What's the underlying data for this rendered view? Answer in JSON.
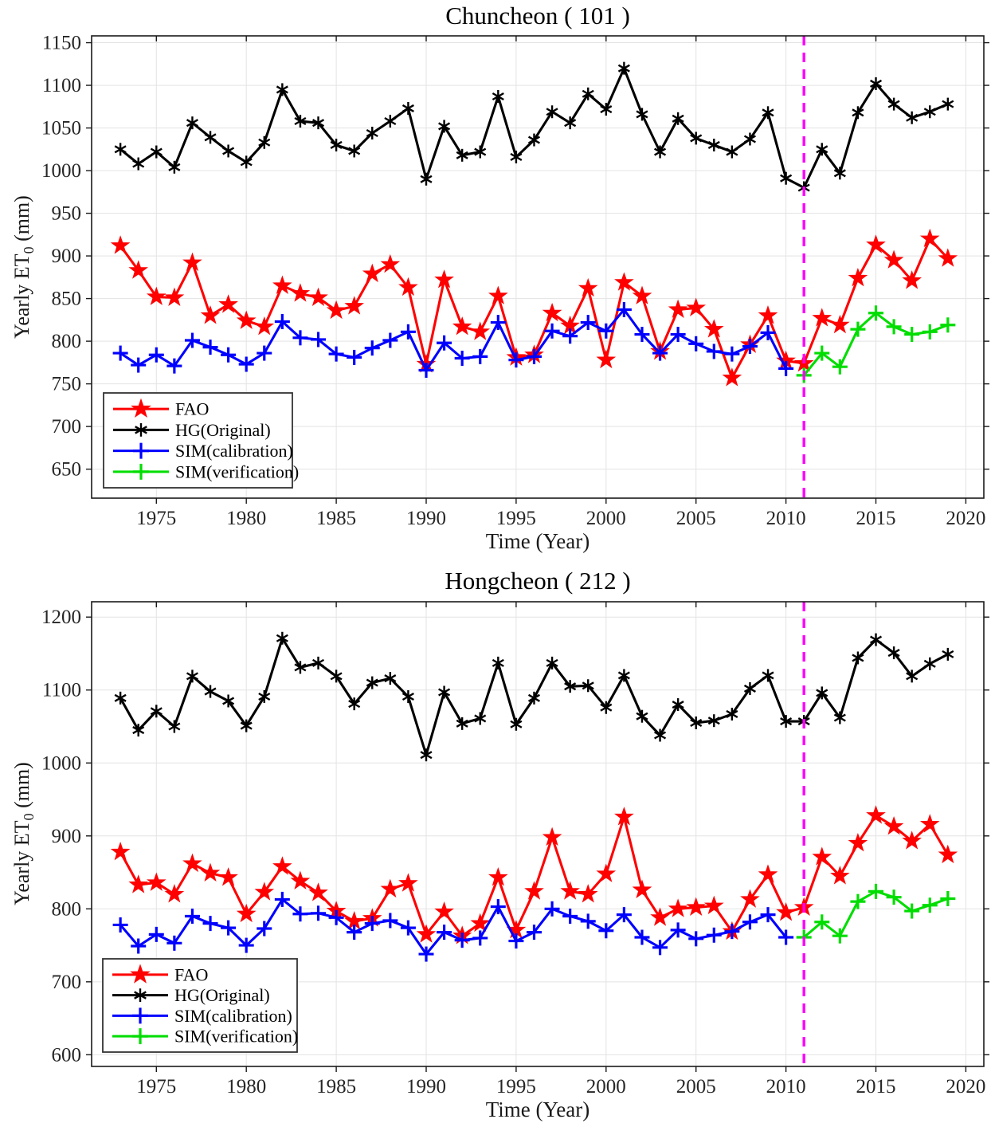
{
  "figure_caption": "",
  "split_year_note": "2011",
  "chart_data": [
    {
      "type": "line",
      "title": "Chuncheon ( 101 )",
      "xlabel": "Time (Year)",
      "ylabel": {
        "text": "Yearly ET",
        "sub": "0",
        "suffix": " (mm)"
      },
      "xlim": [
        1971.4,
        2021.0
      ],
      "ylim": [
        616,
        1158
      ],
      "xticks": [
        1975,
        1980,
        1985,
        1990,
        1995,
        2000,
        2005,
        2010,
        2015,
        2020
      ],
      "yticks": [
        650,
        700,
        750,
        800,
        850,
        900,
        950,
        1000,
        1050,
        1100,
        1150
      ],
      "grid": true,
      "legend_position": "lower-left",
      "split_line": {
        "x": 2011,
        "color": "#ff00ff",
        "style": "dashed"
      },
      "series": [
        {
          "name": "FAO",
          "color": "#ff0000",
          "marker": "star",
          "start_year": 1973,
          "values": [
            912,
            883,
            852,
            851,
            892,
            830,
            843,
            824,
            817,
            865,
            856,
            851,
            836,
            841,
            879,
            890,
            863,
            773,
            872,
            817,
            811,
            853,
            781,
            784,
            833,
            818,
            862,
            778,
            869,
            853,
            788,
            837,
            839,
            814,
            757,
            796,
            830,
            777,
            774,
            827,
            819,
            874,
            913,
            895,
            871,
            920,
            897
          ]
        },
        {
          "name": "HG(Original)",
          "color": "#000000",
          "marker": "asterisk",
          "start_year": 1973,
          "values": [
            1025,
            1008,
            1022,
            1004,
            1056,
            1039,
            1023,
            1010,
            1033,
            1095,
            1058,
            1056,
            1030,
            1023,
            1044,
            1058,
            1073,
            990,
            1052,
            1018,
            1022,
            1087,
            1016,
            1036,
            1069,
            1056,
            1090,
            1072,
            1120,
            1066,
            1022,
            1061,
            1038,
            1030,
            1022,
            1037,
            1068,
            991,
            980,
            1025,
            997,
            1068,
            1102,
            1078,
            1062,
            1069,
            1078
          ]
        },
        {
          "name": "SIM(calibration)",
          "color": "#0000ff",
          "marker": "plus",
          "start_year": 1973,
          "values": [
            786,
            772,
            784,
            771,
            801,
            793,
            784,
            773,
            786,
            823,
            804,
            802,
            785,
            781,
            792,
            801,
            811,
            766,
            798,
            780,
            782,
            822,
            778,
            782,
            812,
            806,
            822,
            812,
            837,
            808,
            786,
            808,
            797,
            788,
            785,
            794,
            810,
            768
          ]
        },
        {
          "name": "SIM(verification)",
          "color": "#00dd00",
          "marker": "plus",
          "start_year": 2011,
          "values": [
            760,
            786,
            770,
            814,
            833,
            817,
            808,
            811,
            819
          ]
        }
      ]
    },
    {
      "type": "line",
      "title": "Hongcheon ( 212 )",
      "xlabel": "Time (Year)",
      "ylabel": {
        "text": "Yearly ET",
        "sub": "0",
        "suffix": " (mm)"
      },
      "xlim": [
        1971.4,
        2021.0
      ],
      "ylim": [
        584,
        1221
      ],
      "xticks": [
        1975,
        1980,
        1985,
        1990,
        1995,
        2000,
        2005,
        2010,
        2015,
        2020
      ],
      "yticks": [
        600,
        700,
        800,
        900,
        1000,
        1100,
        1200
      ],
      "grid": true,
      "legend_position": "lower-left",
      "split_line": {
        "x": 2011,
        "color": "#ff00ff",
        "style": "dashed"
      },
      "series": [
        {
          "name": "FAO",
          "color": "#ff0000",
          "marker": "star",
          "start_year": 1973,
          "values": [
            878,
            833,
            836,
            820,
            862,
            849,
            843,
            793,
            823,
            858,
            838,
            822,
            797,
            783,
            787,
            827,
            835,
            765,
            796,
            763,
            780,
            843,
            771,
            824,
            898,
            824,
            820,
            848,
            926,
            826,
            788,
            800,
            802,
            804,
            769,
            813,
            847,
            795,
            802,
            871,
            845,
            890,
            928,
            913,
            893,
            916,
            874
          ]
        },
        {
          "name": "HG(Original)",
          "color": "#000000",
          "marker": "asterisk",
          "start_year": 1973,
          "values": [
            1089,
            1045,
            1071,
            1050,
            1119,
            1098,
            1085,
            1051,
            1091,
            1171,
            1131,
            1137,
            1119,
            1081,
            1110,
            1116,
            1091,
            1011,
            1097,
            1054,
            1061,
            1137,
            1053,
            1089,
            1137,
            1105,
            1106,
            1076,
            1120,
            1064,
            1038,
            1080,
            1055,
            1058,
            1067,
            1102,
            1120,
            1057,
            1057,
            1096,
            1062,
            1144,
            1169,
            1151,
            1119,
            1136,
            1149
          ]
        },
        {
          "name": "SIM(calibration)",
          "color": "#0000ff",
          "marker": "plus",
          "start_year": 1973,
          "values": [
            778,
            749,
            765,
            753,
            790,
            780,
            774,
            750,
            773,
            813,
            793,
            794,
            788,
            768,
            780,
            784,
            774,
            738,
            768,
            757,
            760,
            803,
            756,
            768,
            800,
            790,
            783,
            770,
            792,
            761,
            747,
            771,
            759,
            764,
            769,
            782,
            792,
            761
          ]
        },
        {
          "name": "SIM(verification)",
          "color": "#00dd00",
          "marker": "plus",
          "start_year": 2011,
          "values": [
            761,
            782,
            763,
            810,
            824,
            816,
            797,
            805,
            814
          ]
        }
      ]
    }
  ]
}
